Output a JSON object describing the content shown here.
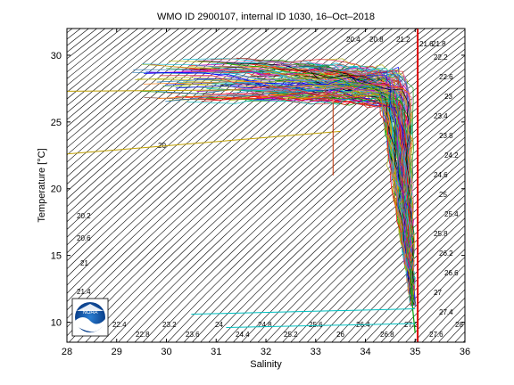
{
  "chart_data": {
    "type": "line",
    "title": "WMO ID 2900107, internal ID 1030, 16–Oct–2018",
    "xlabel": "Salinity",
    "ylabel": "Temperature [°C]",
    "xlim": [
      28,
      36
    ],
    "ylim": [
      8.5,
      32
    ],
    "x_ticks": [
      28,
      29,
      30,
      31,
      32,
      33,
      34,
      35,
      36
    ],
    "y_ticks": [
      10,
      15,
      20,
      25,
      30
    ],
    "grid": false,
    "density_contour_labels": [
      "20",
      "20.2",
      "20.6",
      "21",
      "21.4",
      "22.4",
      "22.8",
      "23.2",
      "23.6",
      "24",
      "24.4",
      "24.8",
      "25.2",
      "25.6",
      "26",
      "26.4",
      "26.8",
      "27.2",
      "27.6",
      "28",
      "20.4",
      "20.8",
      "21.2",
      "21.6",
      "21.8",
      "22.2",
      "22.6",
      "23",
      "23.4",
      "23.8",
      "24.2",
      "24.6",
      "25",
      "25.4",
      "25.8",
      "26.2",
      "26.6",
      "27",
      "27.4"
    ],
    "reference_line_salinity": 35.05,
    "logo_text": "NOAA"
  }
}
